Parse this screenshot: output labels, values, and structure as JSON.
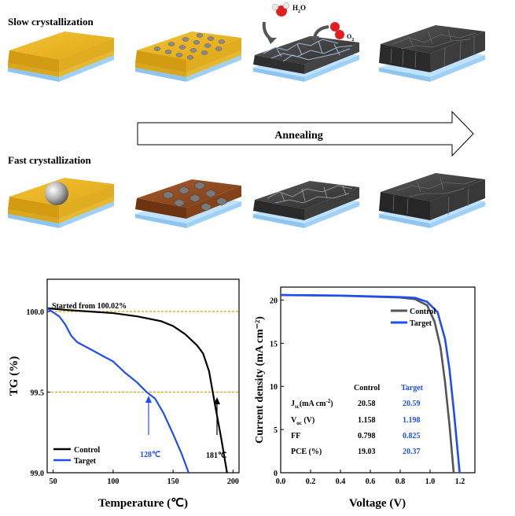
{
  "schematic": {
    "slow_label": "Slow crystallization",
    "fast_label": "Fast crystallization",
    "arrow_label": "Annealing",
    "h2o_label": "H",
    "h2o_sub": "2",
    "h2o_tail": "O",
    "o2_label": "O",
    "o2_sub": "2"
  },
  "chart_data": [
    {
      "type": "line",
      "title": "",
      "annotation": "Started from 100.02%",
      "xlabel": "Temperature (℃)",
      "ylabel": "TG (%)",
      "xlim": [
        45,
        205
      ],
      "ylim": [
        99.0,
        100.2
      ],
      "xticks": [
        "50",
        "100",
        "150",
        "200"
      ],
      "yticks": [
        "99.0",
        "99.5",
        "100.0"
      ],
      "reference_lines": [
        100.0,
        99.5
      ],
      "series": [
        {
          "name": "Control",
          "color": "#000000",
          "points": [
            [
              45,
              100.02
            ],
            [
              60,
              100.01
            ],
            [
              80,
              100.0
            ],
            [
              100,
              99.99
            ],
            [
              120,
              99.97
            ],
            [
              140,
              99.94
            ],
            [
              150,
              99.91
            ],
            [
              160,
              99.86
            ],
            [
              170,
              99.79
            ],
            [
              175,
              99.74
            ],
            [
              180,
              99.63
            ],
            [
              185,
              99.42
            ],
            [
              190,
              99.22
            ],
            [
              195,
              99.0
            ]
          ]
        },
        {
          "name": "Target",
          "color": "#1f4ef2",
          "points": [
            [
              45,
              100.02
            ],
            [
              55,
              99.97
            ],
            [
              60,
              99.92
            ],
            [
              65,
              99.85
            ],
            [
              70,
              99.81
            ],
            [
              80,
              99.77
            ],
            [
              90,
              99.73
            ],
            [
              100,
              99.69
            ],
            [
              110,
              99.62
            ],
            [
              120,
              99.56
            ],
            [
              128,
              99.5
            ],
            [
              135,
              99.46
            ],
            [
              142,
              99.37
            ],
            [
              150,
              99.24
            ],
            [
              157,
              99.12
            ],
            [
              163,
              99.0
            ]
          ]
        }
      ],
      "annotations": [
        {
          "text": "128℃",
          "x": 128,
          "y": 99.5,
          "color": "#1f4ef2"
        },
        {
          "text": "181℃",
          "x": 181,
          "y": 99.5,
          "color": "#000000"
        }
      ],
      "legend": [
        "Control",
        "Target"
      ],
      "legend_placement": "bottom-left"
    },
    {
      "type": "line",
      "title": "",
      "xlabel": "Voltage (V)",
      "ylabel": "Current density  (mA cm⁻²)",
      "xlim": [
        0.0,
        1.3
      ],
      "ylim": [
        0,
        21.5
      ],
      "xticks": [
        "0.0",
        "0.2",
        "0.4",
        "0.6",
        "0.8",
        "1.0",
        "1.2"
      ],
      "yticks": [
        "0",
        "5",
        "10",
        "15",
        "20"
      ],
      "series": [
        {
          "name": "Control",
          "color": "#555555",
          "points": [
            [
              0.0,
              20.58
            ],
            [
              0.4,
              20.5
            ],
            [
              0.8,
              20.3
            ],
            [
              0.9,
              20.1
            ],
            [
              0.98,
              19.4
            ],
            [
              1.03,
              17.5
            ],
            [
              1.07,
              14.5
            ],
            [
              1.1,
              10.5
            ],
            [
              1.13,
              5.5
            ],
            [
              1.158,
              0
            ]
          ]
        },
        {
          "name": "Target",
          "color": "#1f4ef2",
          "points": [
            [
              0.0,
              20.59
            ],
            [
              0.4,
              20.52
            ],
            [
              0.8,
              20.35
            ],
            [
              0.9,
              20.25
            ],
            [
              0.98,
              19.8
            ],
            [
              1.05,
              18.6
            ],
            [
              1.1,
              15.5
            ],
            [
              1.13,
              12.0
            ],
            [
              1.16,
              7.0
            ],
            [
              1.198,
              0
            ]
          ]
        }
      ],
      "legend": [
        "Control",
        "Target"
      ],
      "legend_placement": "top-right",
      "table": {
        "headers": [
          "",
          "Control",
          "Target"
        ],
        "rows": [
          {
            "label": "J",
            "sub": "sc",
            "tail": "(mA cm",
            "sup": "-2",
            "end": ")",
            "control": "20.58",
            "target": "20.59"
          },
          {
            "label": "V",
            "sub": "oc",
            "tail": " (V)",
            "sup": "",
            "end": "",
            "control": "1.158",
            "target": "1.198"
          },
          {
            "label": "FF",
            "sub": "",
            "tail": "",
            "sup": "",
            "end": "",
            "control": "0.798",
            "target": "0.825"
          },
          {
            "label": "PCE (%)",
            "sub": "",
            "tail": "",
            "sup": "",
            "end": "",
            "control": "19.03",
            "target": "20.37"
          }
        ]
      }
    }
  ]
}
